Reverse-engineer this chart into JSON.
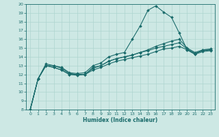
{
  "xlabel": "Humidex (Indice chaleur)",
  "bg_color": "#cde8e4",
  "line_color": "#1a6b6b",
  "grid_color": "#aed4cf",
  "xlim": [
    -0.5,
    23.5
  ],
  "ylim": [
    8,
    20
  ],
  "xticks": [
    0,
    1,
    2,
    3,
    4,
    5,
    6,
    7,
    8,
    9,
    10,
    11,
    12,
    13,
    14,
    15,
    16,
    17,
    18,
    19,
    20,
    21,
    22,
    23
  ],
  "yticks": [
    8,
    9,
    10,
    11,
    12,
    13,
    14,
    15,
    16,
    17,
    18,
    19,
    20
  ],
  "series": [
    {
      "x": [
        0,
        1,
        2,
        3,
        4,
        5,
        6,
        7,
        8,
        9,
        10,
        11,
        12,
        13,
        14,
        15,
        16,
        17,
        18,
        19,
        20,
        21,
        22,
        23
      ],
      "y": [
        8.0,
        11.5,
        13.0,
        13.0,
        12.8,
        12.2,
        12.1,
        12.2,
        13.0,
        13.3,
        14.0,
        14.3,
        14.5,
        16.0,
        17.5,
        19.3,
        19.8,
        19.1,
        18.5,
        16.7,
        14.8,
        14.3,
        14.8,
        14.8
      ]
    },
    {
      "x": [
        0,
        1,
        2,
        3,
        4,
        5,
        6,
        7,
        8,
        9,
        10,
        11,
        12,
        13,
        14,
        15,
        16,
        17,
        18,
        19,
        20,
        21,
        22,
        23
      ],
      "y": [
        8.0,
        11.5,
        13.0,
        12.8,
        12.5,
        12.0,
        12.0,
        12.0,
        12.8,
        13.0,
        13.5,
        13.8,
        14.0,
        14.2,
        14.5,
        14.8,
        15.2,
        15.5,
        15.8,
        16.0,
        15.0,
        14.5,
        14.8,
        14.9
      ]
    },
    {
      "x": [
        0,
        1,
        2,
        3,
        4,
        5,
        6,
        7,
        8,
        9,
        10,
        11,
        12,
        13,
        14,
        15,
        16,
        17,
        18,
        19,
        20,
        21,
        22,
        23
      ],
      "y": [
        8.0,
        11.5,
        13.0,
        12.8,
        12.5,
        12.0,
        11.9,
        12.0,
        12.5,
        12.8,
        13.2,
        13.5,
        13.7,
        13.9,
        14.1,
        14.3,
        14.6,
        14.9,
        15.0,
        15.2,
        14.8,
        14.3,
        14.6,
        14.7
      ]
    },
    {
      "x": [
        0,
        1,
        2,
        3,
        4,
        5,
        6,
        7,
        8,
        9,
        10,
        11,
        12,
        13,
        14,
        15,
        16,
        17,
        18,
        19,
        20,
        21,
        22,
        23
      ],
      "y": [
        8.0,
        11.5,
        13.2,
        13.0,
        12.7,
        12.1,
        12.0,
        12.0,
        12.7,
        13.0,
        13.5,
        13.8,
        14.0,
        14.2,
        14.5,
        14.7,
        15.0,
        15.2,
        15.4,
        15.6,
        14.9,
        14.4,
        14.7,
        14.8
      ]
    }
  ]
}
